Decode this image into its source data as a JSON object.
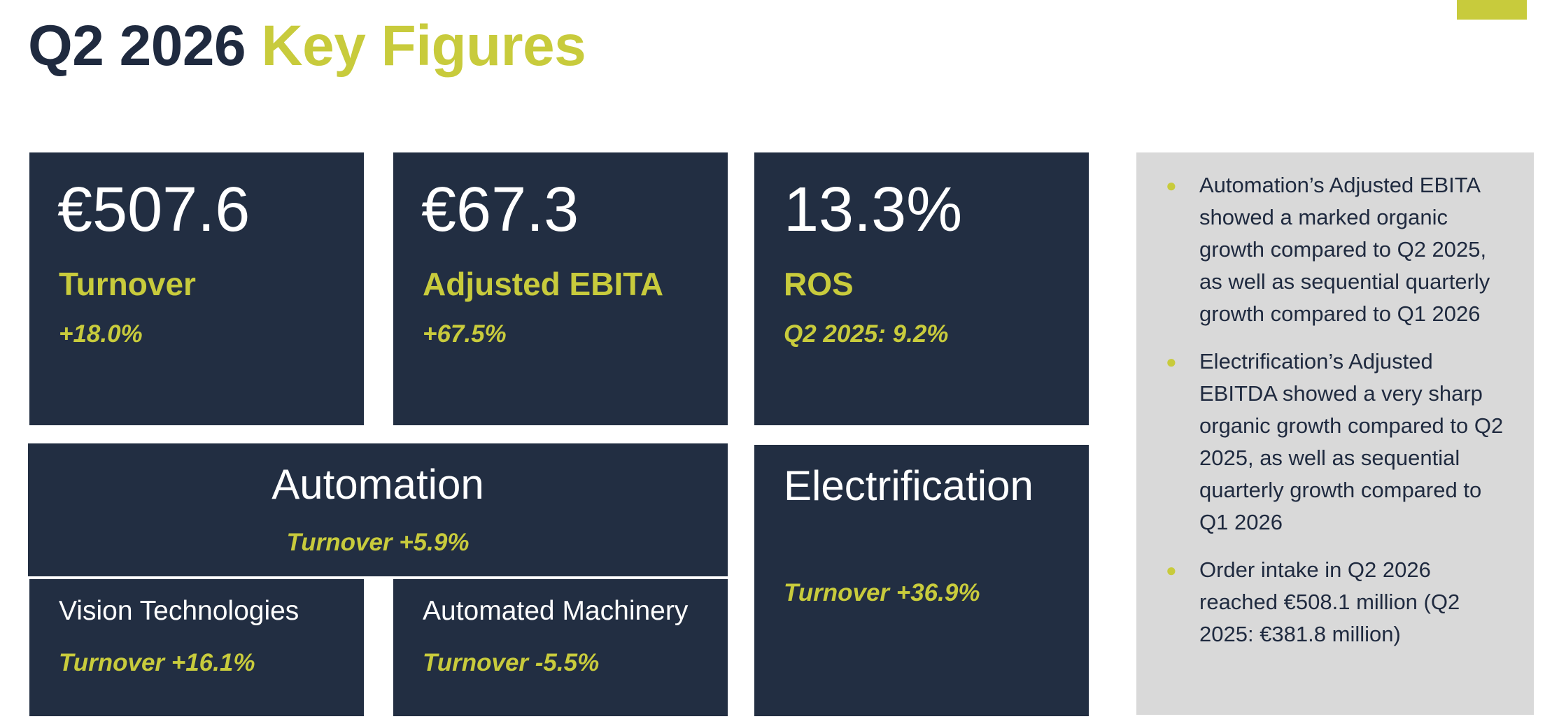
{
  "title": {
    "part1": "Q2 2026",
    "part2": "Key Figures"
  },
  "colors": {
    "navy": "#222e42",
    "accent": "#c8cb3c",
    "panel": "#d9d9d9",
    "text_dark": "#1f2a3f"
  },
  "kpis": [
    {
      "value": "€507.6",
      "label": "Turnover",
      "change": "+18.0%"
    },
    {
      "value": "€67.3",
      "label": "Adjusted EBITA",
      "change": "+67.5%"
    },
    {
      "value": "13.3%",
      "label": "ROS",
      "change": "Q2 2025: 9.2%"
    }
  ],
  "automation": {
    "title": "Automation",
    "change": "Turnover +5.9%",
    "subsegments": [
      {
        "title": "Vision Technologies",
        "change": "Turnover +16.1%"
      },
      {
        "title": "Automated Machinery",
        "change": "Turnover -5.5%"
      }
    ]
  },
  "electrification": {
    "title": "Electrification",
    "change": "Turnover +36.9%"
  },
  "notes": {
    "bullet_icon": "bullet-dot-icon",
    "items": [
      "Automation’s Adjusted EBITA showed a marked organic growth compared to Q2 2025, as well as sequential quarterly growth compared to Q1 2026",
      "Electrification’s Adjusted EBITDA showed a very sharp organic growth compared to Q2 2025, as well as sequential quarterly growth compared to Q1 2026",
      "Order intake in Q2 2026 reached €508.1 million (Q2 2025: €381.8 million)"
    ]
  }
}
